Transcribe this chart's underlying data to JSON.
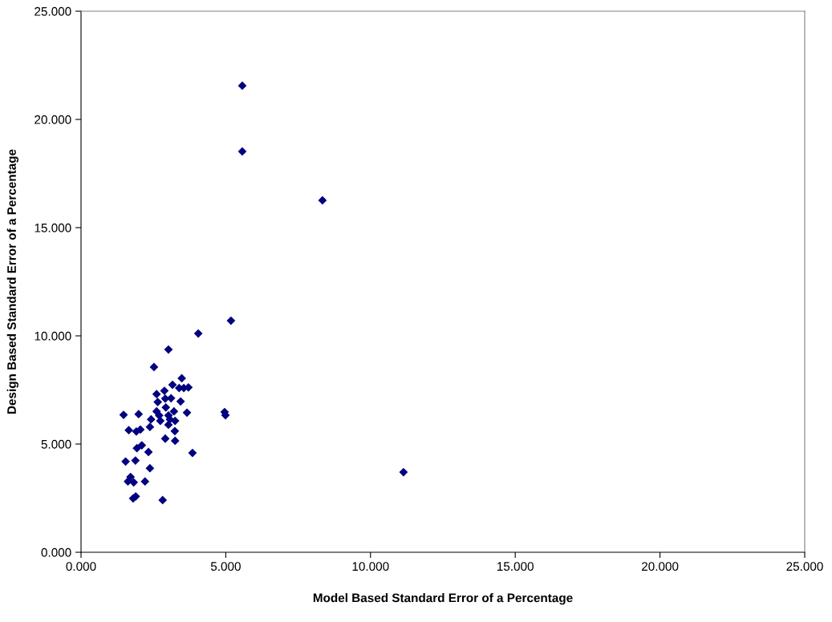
{
  "chart_data": {
    "type": "scatter",
    "xlabel": "Model Based Standard Error of a Percentage",
    "ylabel": "Design Based Standard Error of a Percentage",
    "marker": "diamond",
    "grid": false,
    "xlim": [
      0,
      25
    ],
    "ylim": [
      0,
      25
    ],
    "xticks": [
      {
        "value": 0,
        "label": "0.000"
      },
      {
        "value": 5,
        "label": "5.000"
      },
      {
        "value": 10,
        "label": "10.000"
      },
      {
        "value": 15,
        "label": "15.000"
      },
      {
        "value": 20,
        "label": "20.000"
      },
      {
        "value": 25,
        "label": "25.000"
      }
    ],
    "yticks": [
      {
        "value": 0,
        "label": "0.000"
      },
      {
        "value": 5,
        "label": "5.000"
      },
      {
        "value": 10,
        "label": "10.000"
      },
      {
        "value": 15,
        "label": "15.000"
      },
      {
        "value": 20,
        "label": "20.000"
      },
      {
        "value": 25,
        "label": "25.000"
      }
    ],
    "series": [
      {
        "color": "#000080",
        "x": [
          5.57,
          5.57,
          8.34,
          5.18,
          4.05,
          3.02,
          2.52,
          11.14,
          4.96,
          4.99,
          3.85,
          3.48,
          3.16,
          3.39,
          3.55,
          3.71,
          2.61,
          2.88,
          3.11,
          2.91,
          2.65,
          3.44,
          2.93,
          3.66,
          2.61,
          2.7,
          3.21,
          3.02,
          1.47,
          1.99,
          2.42,
          2.74,
          3.07,
          3.25,
          3.02,
          2.38,
          1.65,
          1.91,
          2.05,
          3.24,
          3.25,
          2.91,
          2.1,
          1.93,
          2.33,
          1.54,
          1.88,
          2.38,
          1.71,
          1.62,
          1.82,
          2.21,
          1.89,
          1.8,
          2.82
        ],
        "values": [
          21.56,
          18.52,
          16.26,
          10.7,
          10.11,
          9.37,
          8.56,
          3.7,
          6.48,
          6.33,
          4.59,
          8.04,
          7.74,
          7.59,
          7.59,
          7.62,
          7.31,
          7.46,
          7.12,
          7.1,
          6.94,
          6.97,
          6.69,
          6.45,
          6.51,
          6.32,
          6.51,
          6.32,
          6.35,
          6.38,
          6.14,
          6.07,
          6.14,
          6.07,
          5.89,
          5.79,
          5.64,
          5.58,
          5.67,
          5.6,
          5.15,
          5.25,
          4.94,
          4.81,
          4.63,
          4.19,
          4.24,
          3.88,
          3.48,
          3.27,
          3.23,
          3.27,
          2.58,
          2.49,
          2.41
        ]
      }
    ]
  }
}
